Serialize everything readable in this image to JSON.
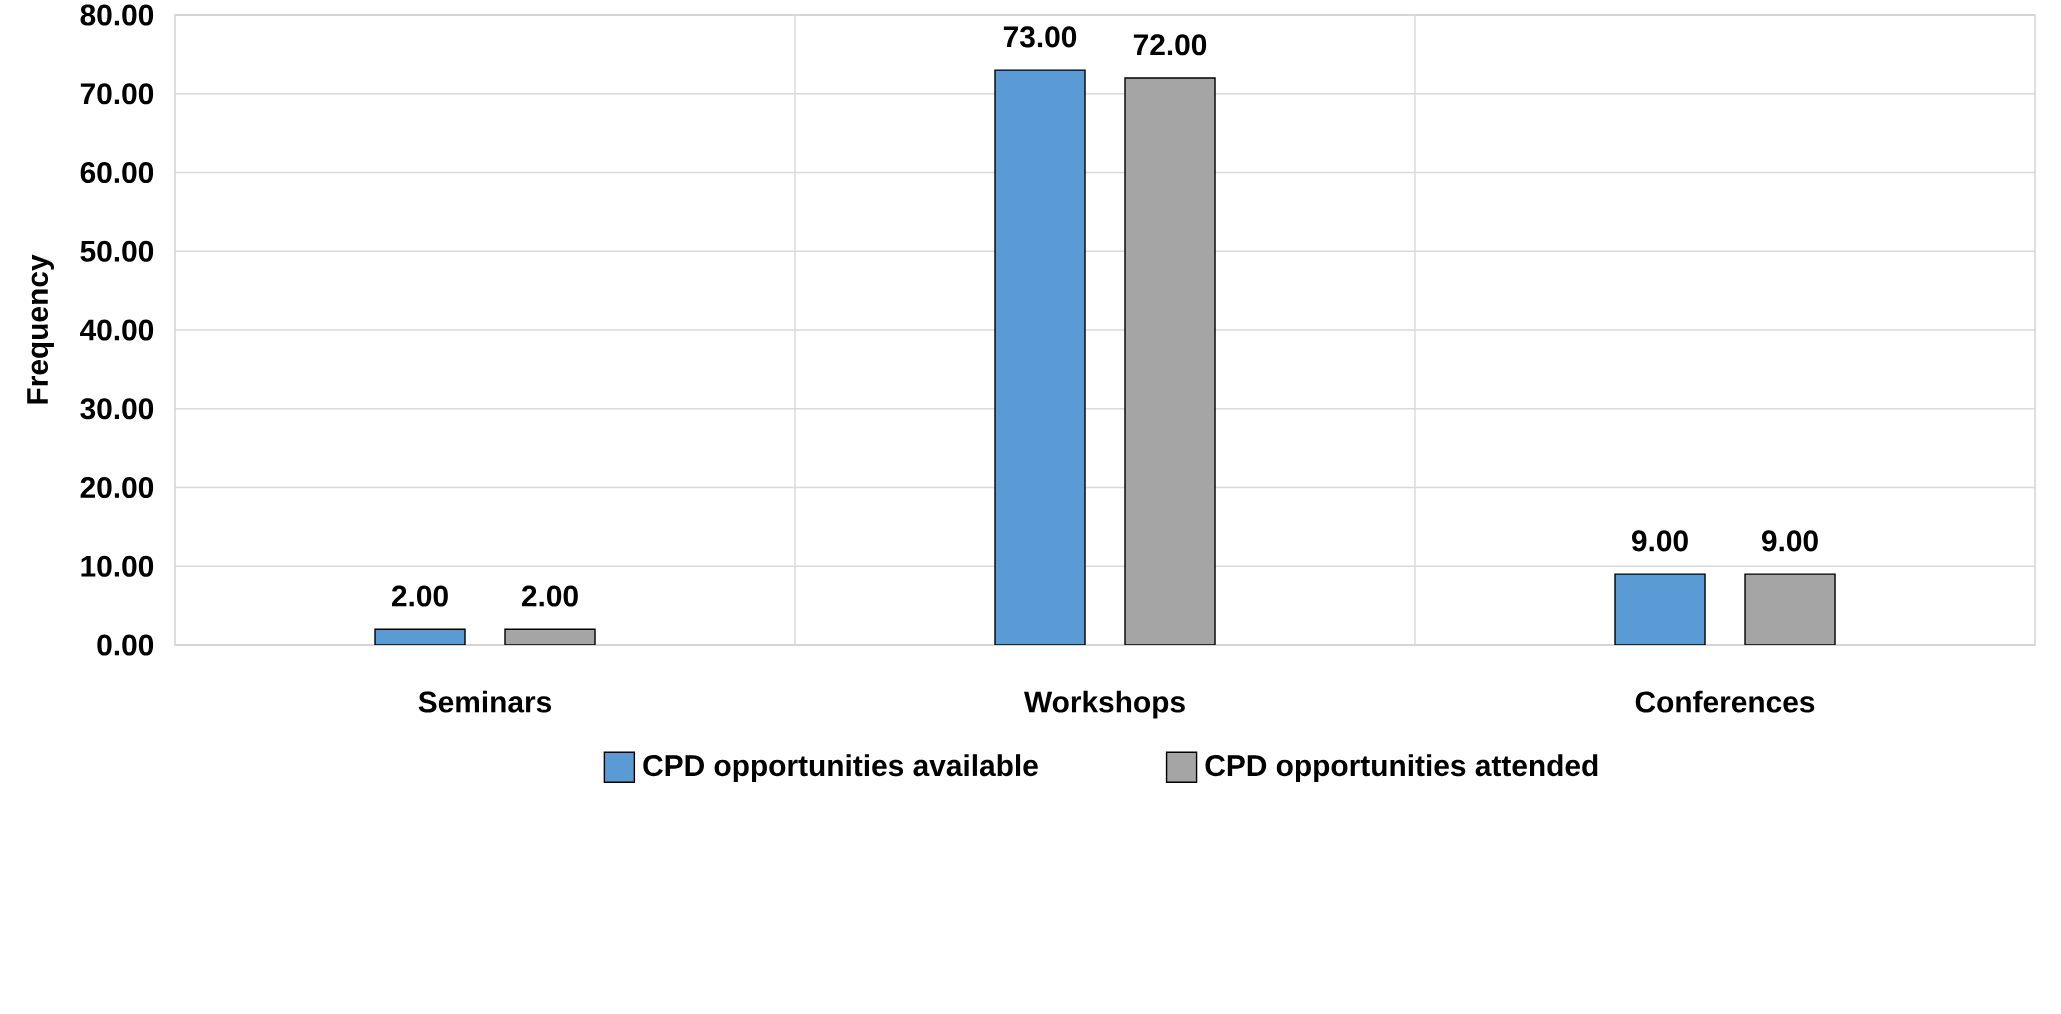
{
  "chart_data": {
    "type": "bar",
    "ylabel": "Frequency",
    "categories": [
      "Seminars",
      "Workshops",
      "Conferences"
    ],
    "series": [
      {
        "name": "CPD opportunities available",
        "color": "#5b9bd5",
        "values": [
          2,
          73,
          9
        ],
        "value_labels": [
          "2.00",
          "73.00",
          "9.00"
        ]
      },
      {
        "name": "CPD opportunities attended",
        "color": "#a5a5a5",
        "values": [
          2,
          72,
          9
        ],
        "value_labels": [
          "2.00",
          "72.00",
          "9.00"
        ]
      }
    ],
    "ylim": [
      0,
      80
    ],
    "yticks": [
      {
        "value": 0,
        "label": "0.00"
      },
      {
        "value": 10,
        "label": "10.00"
      },
      {
        "value": 20,
        "label": "20.00"
      },
      {
        "value": 30,
        "label": "30.00"
      },
      {
        "value": 40,
        "label": "40.00"
      },
      {
        "value": 50,
        "label": "50.00"
      },
      {
        "value": 60,
        "label": "60.00"
      },
      {
        "value": 70,
        "label": "70.00"
      },
      {
        "value": 80,
        "label": "80.00"
      }
    ],
    "grid": true,
    "legend": "bottom"
  }
}
